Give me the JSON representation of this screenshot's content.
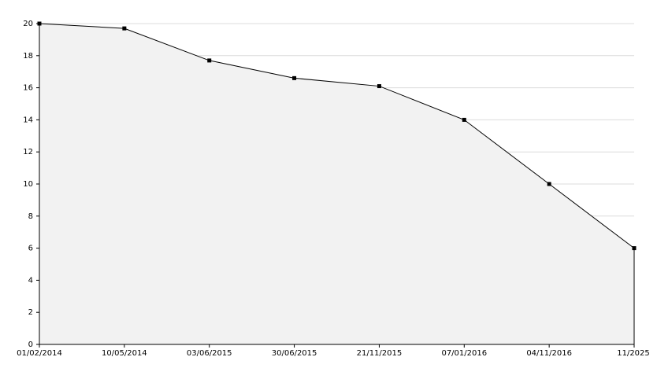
{
  "chart_data": {
    "type": "area",
    "categories": [
      "01/02/2014",
      "10/05/2014",
      "03/06/2015",
      "30/06/2015",
      "21/11/2015",
      "07/01/2016",
      "04/11/2016",
      "11/2025"
    ],
    "values": [
      20,
      19.7,
      17.7,
      16.6,
      16.1,
      14,
      10,
      6
    ],
    "color": "#000000",
    "fill": "#f2f2f2",
    "ylim": [
      0,
      20
    ],
    "yticks": [
      0,
      2,
      4,
      6,
      8,
      10,
      12,
      14,
      16,
      18,
      20
    ],
    "grid": true
  }
}
